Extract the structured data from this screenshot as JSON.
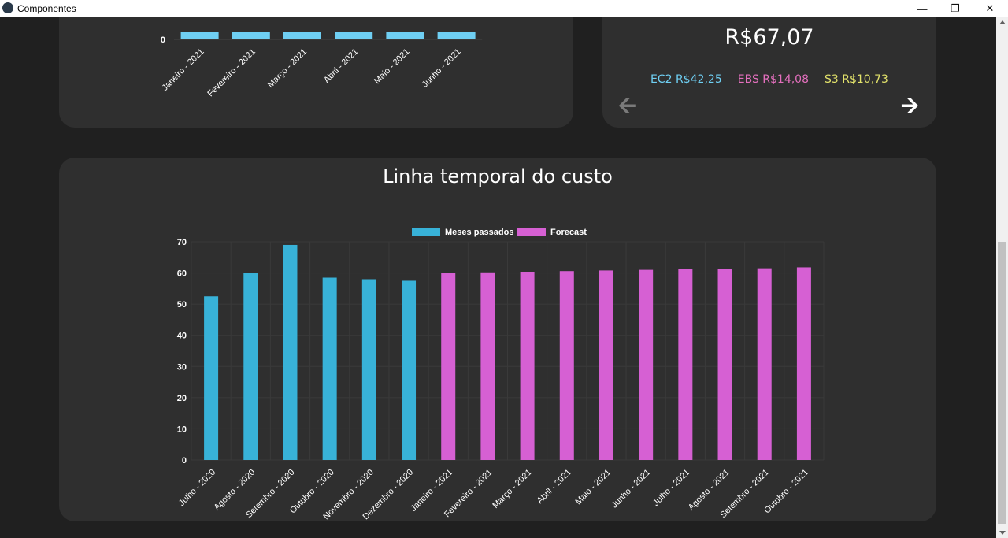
{
  "window": {
    "title": "Componentes"
  },
  "summary": {
    "total": "R$67,07",
    "items": [
      {
        "label": "EC2 R$42,25",
        "color": "#6fcff3"
      },
      {
        "label": "EBS R$14,08",
        "color": "#e36fbd"
      },
      {
        "label": "S3 R$10,73",
        "color": "#e3e36b"
      }
    ],
    "prev_icon": "arrow-left",
    "next_icon": "arrow-right"
  },
  "colors": {
    "past": "#38b2d8",
    "forecast": "#d660d3",
    "top_bars": "#6fcff3"
  },
  "chart_data": [
    {
      "type": "bar",
      "categories": [
        "Janeiro - 2021",
        "Fevereiro - 2021",
        "Março - 2021",
        "Abril - 2021",
        "Maio - 2021",
        "Junho - 2021"
      ],
      "yticks": [
        "0"
      ],
      "note_partial": true
    },
    {
      "type": "bar",
      "title": "Linha temporal do custo",
      "categories": [
        "Julho - 2020",
        "Agosto - 2020",
        "Setembro - 2020",
        "Outubro - 2020",
        "Novembro - 2020",
        "Dezembro - 2020",
        "Janeiro - 2021",
        "Fevereiro - 2021",
        "Março - 2021",
        "Abril - 2021",
        "Maio - 2021",
        "Junho - 2021",
        "Julho - 2021",
        "Agosto - 2021",
        "Setembro - 2021",
        "Outubro - 2021"
      ],
      "series": [
        {
          "name": "Meses passados",
          "values": [
            52.5,
            60,
            69,
            58.5,
            58,
            57.5,
            null,
            null,
            null,
            null,
            null,
            null,
            null,
            null,
            null,
            null
          ]
        },
        {
          "name": "Forecast",
          "values": [
            null,
            null,
            null,
            null,
            null,
            null,
            60,
            60.2,
            60.4,
            60.6,
            60.8,
            61,
            61.2,
            61.4,
            61.5,
            61.8
          ]
        }
      ],
      "ylim": [
        0,
        70
      ],
      "yticks": [
        "0",
        "10",
        "20",
        "30",
        "40",
        "50",
        "60",
        "70"
      ],
      "legend": "top",
      "grid": true
    }
  ]
}
